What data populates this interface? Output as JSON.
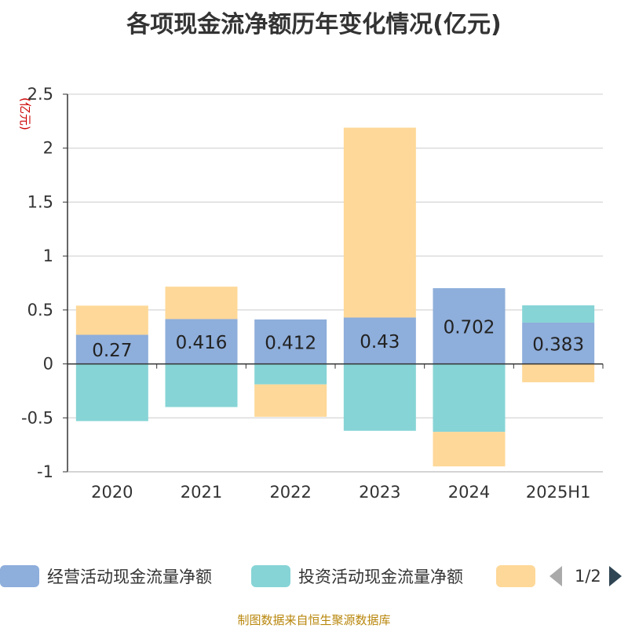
{
  "chart_data": {
    "type": "bar",
    "stacked": true,
    "title": "各项现金流净额历年变化情况(亿元)",
    "ylabel": "(亿元)",
    "ylim": [
      -1,
      2.5
    ],
    "yticks": [
      2.5,
      2,
      1.5,
      1,
      0.5,
      0,
      -0.5,
      -1
    ],
    "grid": true,
    "legend_position": "bottom",
    "categories": [
      "2020",
      "2021",
      "2022",
      "2023",
      "2024",
      "2025H1"
    ],
    "series": [
      {
        "name": "经营活动现金流量净额",
        "color": "#8eaedb",
        "values": [
          0.27,
          0.416,
          0.412,
          0.43,
          0.702,
          0.383
        ],
        "labels": [
          "0.27",
          "0.416",
          "0.412",
          "0.43",
          "0.702",
          "0.383"
        ]
      },
      {
        "name": "投资活动现金流量净额",
        "color": "#86d4d6",
        "values": [
          -0.53,
          -0.4,
          -0.19,
          -0.62,
          -0.63,
          0.16
        ]
      },
      {
        "name": "",
        "color": "#fed898",
        "values": [
          0.27,
          0.3,
          -0.3,
          1.76,
          -0.32,
          -0.17
        ]
      }
    ]
  },
  "legend": {
    "item1": "经营活动现金流量净额",
    "item2": "投资活动现金流量净额",
    "page": "1/2"
  },
  "source": "制图数据来自恒生聚源数据库"
}
